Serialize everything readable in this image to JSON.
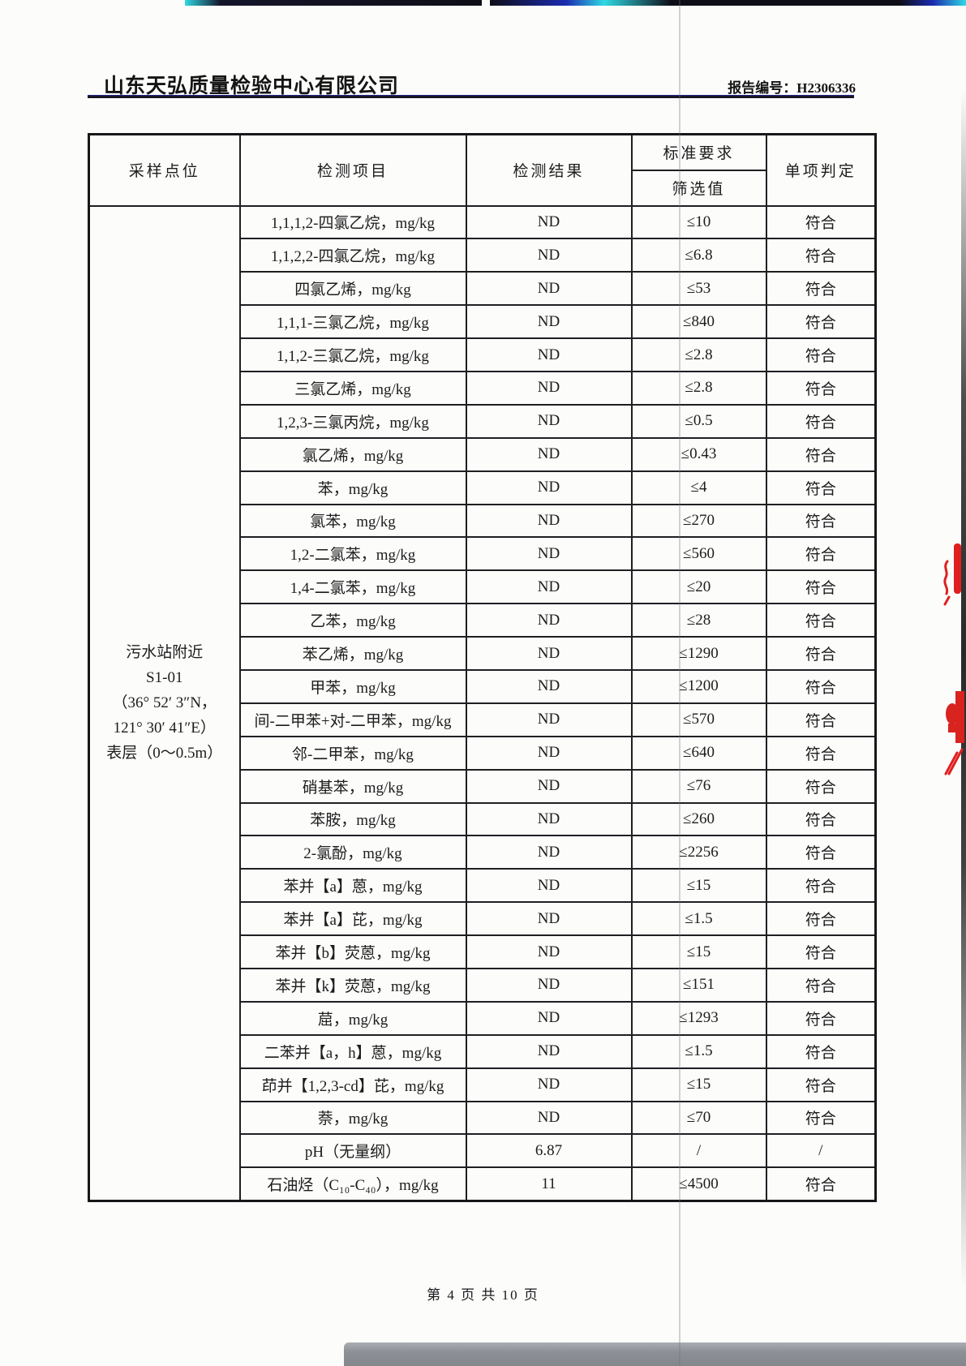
{
  "page_header": {
    "company": "山东天弘质量检验中心有限公司",
    "report_no_label": "报告编号：",
    "report_no": "H2306336"
  },
  "table": {
    "headers": {
      "sample_point": "采样点位",
      "item": "检测项目",
      "result": "检测结果",
      "standard": "标准要求",
      "screening": "筛选值",
      "judgment": "单项判定"
    },
    "sample_point": {
      "lines": [
        "污水站附近",
        "S1-01",
        "（36° 52′ 3″N，",
        "121° 30′ 41″E）",
        "表层（0～0.5m）"
      ]
    },
    "rows": [
      {
        "item": "1,1,1,2-四氯乙烷，mg/kg",
        "result": "ND",
        "limit": "≤10",
        "judgment": "符合"
      },
      {
        "item": "1,1,2,2-四氯乙烷，mg/kg",
        "result": "ND",
        "limit": "≤6.8",
        "judgment": "符合"
      },
      {
        "item": "四氯乙烯，mg/kg",
        "result": "ND",
        "limit": "≤53",
        "judgment": "符合"
      },
      {
        "item": "1,1,1-三氯乙烷，mg/kg",
        "result": "ND",
        "limit": "≤840",
        "judgment": "符合"
      },
      {
        "item": "1,1,2-三氯乙烷，mg/kg",
        "result": "ND",
        "limit": "≤2.8",
        "judgment": "符合"
      },
      {
        "item": "三氯乙烯，mg/kg",
        "result": "ND",
        "limit": "≤2.8",
        "judgment": "符合"
      },
      {
        "item": "1,2,3-三氯丙烷，mg/kg",
        "result": "ND",
        "limit": "≤0.5",
        "judgment": "符合"
      },
      {
        "item": "氯乙烯，mg/kg",
        "result": "ND",
        "limit": "≤0.43",
        "judgment": "符合"
      },
      {
        "item": "苯，mg/kg",
        "result": "ND",
        "limit": "≤4",
        "judgment": "符合"
      },
      {
        "item": "氯苯，mg/kg",
        "result": "ND",
        "limit": "≤270",
        "judgment": "符合"
      },
      {
        "item": "1,2-二氯苯，mg/kg",
        "result": "ND",
        "limit": "≤560",
        "judgment": "符合"
      },
      {
        "item": "1,4-二氯苯，mg/kg",
        "result": "ND",
        "limit": "≤20",
        "judgment": "符合"
      },
      {
        "item": "乙苯，mg/kg",
        "result": "ND",
        "limit": "≤28",
        "judgment": "符合"
      },
      {
        "item": "苯乙烯，mg/kg",
        "result": "ND",
        "limit": "≤1290",
        "judgment": "符合"
      },
      {
        "item": "甲苯，mg/kg",
        "result": "ND",
        "limit": "≤1200",
        "judgment": "符合"
      },
      {
        "item": "间-二甲苯+对-二甲苯，mg/kg",
        "result": "ND",
        "limit": "≤570",
        "judgment": "符合"
      },
      {
        "item": "邻-二甲苯，mg/kg",
        "result": "ND",
        "limit": "≤640",
        "judgment": "符合"
      },
      {
        "item": "硝基苯，mg/kg",
        "result": "ND",
        "limit": "≤76",
        "judgment": "符合"
      },
      {
        "item": "苯胺，mg/kg",
        "result": "ND",
        "limit": "≤260",
        "judgment": "符合"
      },
      {
        "item": "2-氯酚，mg/kg",
        "result": "ND",
        "limit": "≤2256",
        "judgment": "符合"
      },
      {
        "item": "苯并【a】蒽，mg/kg",
        "result": "ND",
        "limit": "≤15",
        "judgment": "符合"
      },
      {
        "item": "苯并【a】芘，mg/kg",
        "result": "ND",
        "limit": "≤1.5",
        "judgment": "符合"
      },
      {
        "item": "苯并【b】荧蒽，mg/kg",
        "result": "ND",
        "limit": "≤15",
        "judgment": "符合"
      },
      {
        "item": "苯并【k】荧蒽，mg/kg",
        "result": "ND",
        "limit": "≤151",
        "judgment": "符合"
      },
      {
        "item": "䓛，mg/kg",
        "result": "ND",
        "limit": "≤1293",
        "judgment": "符合"
      },
      {
        "item": "二苯并【a，h】蒽，mg/kg",
        "result": "ND",
        "limit": "≤1.5",
        "judgment": "符合"
      },
      {
        "item": "茚并【1,2,3-cd】芘，mg/kg",
        "result": "ND",
        "limit": "≤15",
        "judgment": "符合"
      },
      {
        "item": "萘，mg/kg",
        "result": "ND",
        "limit": "≤70",
        "judgment": "符合"
      },
      {
        "item": "pH（无量纲）",
        "result": "6.87",
        "limit": "/",
        "judgment": "/"
      },
      {
        "item": "石油烃（C₁₀-C₄₀），mg/kg",
        "result": "11",
        "limit": "≤4500",
        "judgment": "符合"
      }
    ]
  },
  "footer": {
    "page_info": "第 4 页 共 10 页"
  },
  "colors": {
    "border": "#1f1f22",
    "ink": "#1c1c1c",
    "red_ink_mark": "#e01f1f",
    "scan_band": "#0e0e16",
    "scan_band_accent": "#2fd8e2",
    "bottom_band": "#8d9196"
  }
}
